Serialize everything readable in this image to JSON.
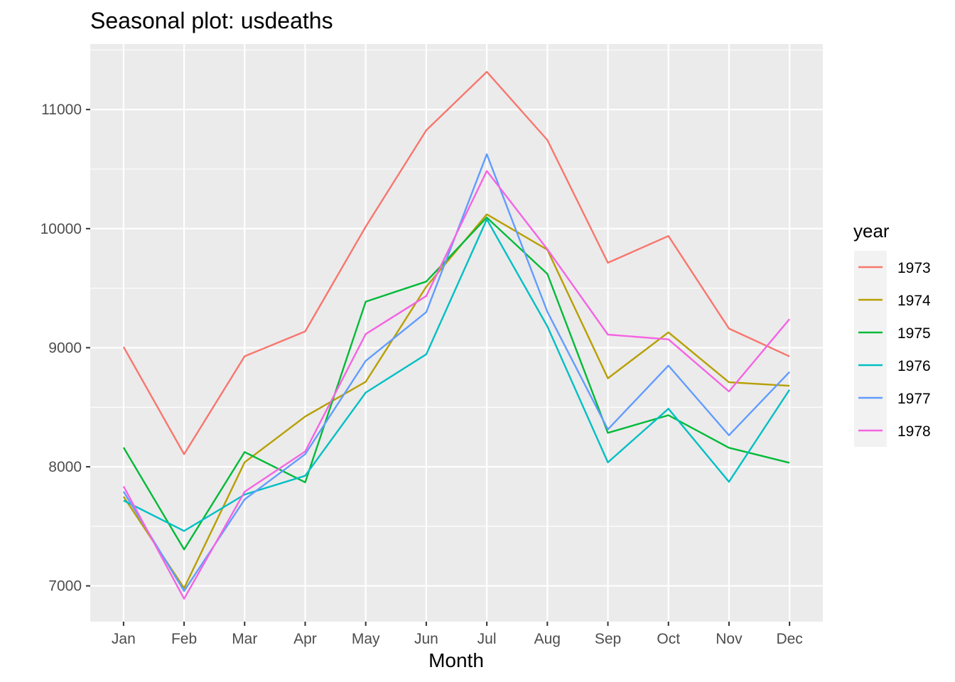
{
  "chart_data": {
    "type": "line",
    "title": "Seasonal plot: usdeaths",
    "xlabel": "Month",
    "ylabel": "",
    "categories": [
      "Jan",
      "Feb",
      "Mar",
      "Apr",
      "May",
      "Jun",
      "Jul",
      "Aug",
      "Sep",
      "Oct",
      "Nov",
      "Dec"
    ],
    "ylim": [
      6700,
      11550
    ],
    "yticks": [
      7000,
      8000,
      9000,
      10000,
      11000
    ],
    "grid": true,
    "legend_title": "year",
    "legend_position": "right",
    "series": [
      {
        "name": "1973",
        "color": "#F8766D",
        "values": [
          9007,
          8106,
          8928,
          9137,
          10017,
          10826,
          11317,
          10744,
          9713,
          9938,
          9161,
          8927
        ]
      },
      {
        "name": "1974",
        "color": "#B79F00",
        "values": [
          7750,
          6981,
          8038,
          8422,
          8714,
          9512,
          10120,
          9823,
          8743,
          9129,
          8710,
          8680
        ]
      },
      {
        "name": "1975",
        "color": "#00BA38",
        "values": [
          8162,
          7306,
          8124,
          7870,
          9387,
          9556,
          10093,
          9620,
          8285,
          8433,
          8160,
          8034
        ]
      },
      {
        "name": "1976",
        "color": "#00BFC4",
        "values": [
          7717,
          7461,
          7767,
          7925,
          8623,
          8945,
          10078,
          9179,
          8037,
          8488,
          7874,
          8647
        ]
      },
      {
        "name": "1977",
        "color": "#619CFF",
        "values": [
          7792,
          6957,
          7726,
          8106,
          8890,
          9299,
          10625,
          9302,
          8314,
          8850,
          8265,
          8796
        ]
      },
      {
        "name": "1978",
        "color": "#F564E3",
        "values": [
          7836,
          6892,
          7791,
          8129,
          9115,
          9434,
          10484,
          9827,
          9110,
          9070,
          8633,
          9240
        ]
      }
    ]
  }
}
